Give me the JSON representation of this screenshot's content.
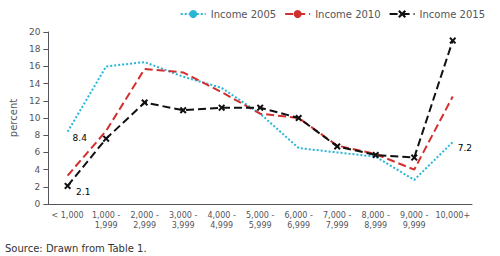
{
  "chart_data": {
    "type": "line",
    "categories": [
      "< 1,000",
      "1,000 -\n1,999",
      "2,000 -\n2,999",
      "3,000 -\n3,999",
      "4,000 -\n4,999",
      "5,000 -\n5,999",
      "6,000 -\n6,999",
      "7,000 -\n7,999",
      "8,000 -\n8,999",
      "9,000 -\n9,999",
      "10,000+"
    ],
    "series": [
      {
        "name": "Income 2005",
        "color": "#29b6d6",
        "line_style": "dotted",
        "marker": "none",
        "values": [
          8.4,
          16.0,
          16.5,
          14.8,
          13.5,
          10.5,
          6.5,
          6.0,
          5.5,
          2.8,
          7.2
        ]
      },
      {
        "name": "Income 2010",
        "color": "#d32f2f",
        "line_style": "dashed",
        "marker": "none",
        "values": [
          3.3,
          8.5,
          15.7,
          15.3,
          13.0,
          10.5,
          10.0,
          6.8,
          5.8,
          4.0,
          12.5
        ]
      },
      {
        "name": "Income 2015",
        "color": "#111111",
        "line_style": "dashed",
        "marker": "x",
        "values": [
          2.1,
          7.6,
          11.8,
          10.9,
          11.2,
          11.2,
          10.0,
          6.7,
          5.7,
          5.4,
          19.0
        ]
      }
    ],
    "annotations": [
      {
        "text": "8.4",
        "series": "Income 2005",
        "category": "< 1,000"
      },
      {
        "text": "2.1",
        "series": "Income 2015",
        "category": "< 1,000"
      },
      {
        "text": "7.2",
        "series": "Income 2005",
        "category": "10,000+"
      }
    ],
    "ylabel": "percent",
    "ylim": [
      0,
      20
    ],
    "yticks": [
      0,
      2,
      4,
      6,
      8,
      10,
      12,
      14,
      16,
      18,
      20
    ],
    "grid": false,
    "legend": "upper right",
    "source": "Source: Drawn from Table 1."
  }
}
